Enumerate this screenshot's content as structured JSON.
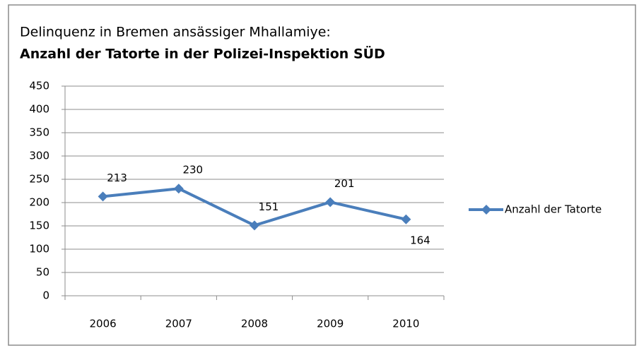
{
  "chart_data": {
    "type": "line",
    "title": "Delinquenz in Bremen ansässiger Mhallamiye:",
    "subtitle": "Anzahl der Tatorte in der Polizei-Inspektion SÜD",
    "categories": [
      "2006",
      "2007",
      "2008",
      "2009",
      "2010"
    ],
    "series": [
      {
        "name": "Anzahl der Tatorte",
        "color": "#4a7ebb",
        "values": [
          213,
          230,
          151,
          201,
          164
        ]
      }
    ],
    "ylim": [
      0,
      450
    ],
    "yticks": [
      0,
      50,
      100,
      150,
      200,
      250,
      300,
      350,
      400,
      450
    ],
    "grid": true,
    "legend": "right",
    "data_labels": true
  }
}
